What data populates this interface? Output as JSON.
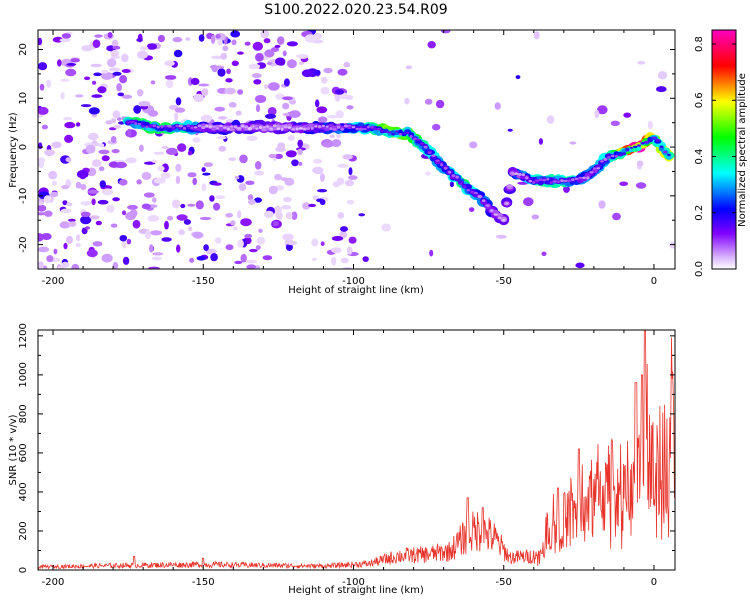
{
  "title": "S100.2022.020.23.54.R09",
  "chart_data": [
    {
      "type": "heatmap",
      "xlabel": "Height of straight line (km)",
      "ylabel": "Frequency (Hz)",
      "xlim": [
        -205,
        7
      ],
      "ylim": [
        -25,
        24
      ],
      "xticks": [
        -200,
        -150,
        -100,
        -50,
        0
      ],
      "yticks": [
        -20,
        -10,
        0,
        10,
        20
      ],
      "colorbar": {
        "label": "Normalized spectral amplitude",
        "range": [
          0,
          0.85
        ],
        "ticks": [
          0.0,
          0.2,
          0.4,
          0.6,
          0.8
        ],
        "colormap": [
          "#ffffff",
          "#d9b3ff",
          "#8000ff",
          "#0000ff",
          "#00ffff",
          "#00ff00",
          "#ffff00",
          "#ff0000",
          "#ff00c0"
        ]
      },
      "ridge": [
        {
          "x": -175,
          "y": 5,
          "a": 0.4
        },
        {
          "x": -165,
          "y": 4,
          "a": 0.45
        },
        {
          "x": -155,
          "y": 4,
          "a": 0.35
        },
        {
          "x": -150,
          "y": 4,
          "a": 0.2
        },
        {
          "x": -125,
          "y": 4,
          "a": 0.15
        },
        {
          "x": -115,
          "y": 4,
          "a": 0.2
        },
        {
          "x": -105,
          "y": 4,
          "a": 0.25
        },
        {
          "x": -95,
          "y": 4,
          "a": 0.35
        },
        {
          "x": -88,
          "y": 3,
          "a": 0.55
        },
        {
          "x": -82,
          "y": 3,
          "a": 0.5
        },
        {
          "x": -76,
          "y": 0,
          "a": 0.35
        },
        {
          "x": -72,
          "y": -3,
          "a": 0.3
        },
        {
          "x": -68,
          "y": -5,
          "a": 0.3
        },
        {
          "x": -63,
          "y": -8,
          "a": 0.4
        },
        {
          "x": -58,
          "y": -10,
          "a": 0.3
        },
        {
          "x": -54,
          "y": -13,
          "a": 0.2
        },
        {
          "x": -50,
          "y": -15,
          "a": 0.15
        },
        {
          "x": -47,
          "y": -5,
          "a": 0.2
        },
        {
          "x": -40,
          "y": -7,
          "a": 0.35
        },
        {
          "x": -33,
          "y": -7,
          "a": 0.4
        },
        {
          "x": -27,
          "y": -7,
          "a": 0.35
        },
        {
          "x": -22,
          "y": -6,
          "a": 0.25
        },
        {
          "x": -15,
          "y": -2,
          "a": 0.35
        },
        {
          "x": -10,
          "y": -1,
          "a": 0.6
        },
        {
          "x": -5,
          "y": 0,
          "a": 0.85
        },
        {
          "x": 0,
          "y": 2,
          "a": 0.5
        },
        {
          "x": 5,
          "y": -2,
          "a": 0.6
        }
      ]
    },
    {
      "type": "line",
      "xlabel": "Height of straight line (km)",
      "ylabel": "SNR (10 * v/v)",
      "xlim": [
        -205,
        7
      ],
      "ylim": [
        0,
        1230
      ],
      "xticks": [
        -200,
        -150,
        -100,
        -50,
        0
      ],
      "yticks": [
        0,
        200,
        400,
        600,
        800,
        1000,
        1200
      ],
      "color": "#e8332a",
      "envelope": [
        {
          "x": -205,
          "y": 20
        },
        {
          "x": -175,
          "y": 30
        },
        {
          "x": -150,
          "y": 35
        },
        {
          "x": -110,
          "y": 25
        },
        {
          "x": -95,
          "y": 40
        },
        {
          "x": -85,
          "y": 90
        },
        {
          "x": -75,
          "y": 100
        },
        {
          "x": -68,
          "y": 120
        },
        {
          "x": -62,
          "y": 230
        },
        {
          "x": -58,
          "y": 260
        },
        {
          "x": -53,
          "y": 200
        },
        {
          "x": -48,
          "y": 80
        },
        {
          "x": -38,
          "y": 90
        },
        {
          "x": -35,
          "y": 280
        },
        {
          "x": -28,
          "y": 330
        },
        {
          "x": -22,
          "y": 380
        },
        {
          "x": -18,
          "y": 480
        },
        {
          "x": -12,
          "y": 480
        },
        {
          "x": -8,
          "y": 450
        },
        {
          "x": -4,
          "y": 600
        },
        {
          "x": -2,
          "y": 880
        },
        {
          "x": 2,
          "y": 640
        },
        {
          "x": 6,
          "y": 850
        },
        {
          "x": 7,
          "y": 880
        }
      ],
      "peaks": [
        {
          "x": -173,
          "y": 70
        },
        {
          "x": -150,
          "y": 60
        },
        {
          "x": -62,
          "y": 370
        },
        {
          "x": -57,
          "y": 320
        },
        {
          "x": -32,
          "y": 420
        },
        {
          "x": -25,
          "y": 620
        },
        {
          "x": -14,
          "y": 660
        },
        {
          "x": -6,
          "y": 960
        },
        {
          "x": -4,
          "y": 1000
        },
        {
          "x": -4,
          "y": 1000
        },
        {
          "x": -3,
          "y": 1225
        },
        {
          "x": 6,
          "y": 980
        }
      ]
    }
  ]
}
